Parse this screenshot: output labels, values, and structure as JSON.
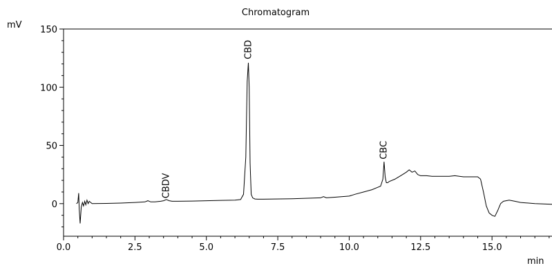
{
  "chart_data": {
    "type": "line",
    "title": "Chromatogram",
    "xlabel": "min",
    "ylabel": "mV",
    "xlim": [
      0.0,
      17.1
    ],
    "ylim": [
      -28,
      150
    ],
    "x_ticks": [
      0.0,
      2.5,
      5.0,
      7.5,
      10.0,
      12.5,
      15.0
    ],
    "x_tick_labels": [
      "0.0",
      "2.5",
      "5.0",
      "7.5",
      "10.0",
      "12.5",
      "15.0"
    ],
    "y_ticks": [
      0,
      50,
      100,
      150
    ],
    "y_tick_labels": [
      "0",
      "50",
      "100",
      "150"
    ],
    "grid": false,
    "line_color": "#000000",
    "series": [
      {
        "x": [
          0.45,
          0.5,
          0.53,
          0.55,
          0.58,
          0.62,
          0.66,
          0.7,
          0.74,
          0.78,
          0.82,
          0.86,
          0.9,
          0.95,
          1.0,
          1.5,
          2.0,
          2.5,
          2.85,
          2.95,
          3.05,
          3.2,
          3.4,
          3.5,
          3.6,
          3.7,
          3.8,
          4.0,
          4.5,
          5.0,
          5.5,
          6.0,
          6.2,
          6.3,
          6.38,
          6.43,
          6.47,
          6.5,
          6.53,
          6.57,
          6.62,
          6.7,
          6.8,
          7.0,
          8.0,
          9.0,
          9.1,
          9.2,
          9.5,
          10.0,
          10.2,
          10.5,
          10.8,
          11.0,
          11.1,
          11.18,
          11.22,
          11.26,
          11.3,
          11.35,
          11.4,
          11.6,
          11.8,
          12.0,
          12.1,
          12.2,
          12.3,
          12.4,
          12.5,
          12.7,
          12.9,
          13.0,
          13.5,
          13.7,
          14.0,
          14.5,
          14.6,
          14.7,
          14.8,
          14.9,
          15.0,
          15.1,
          15.2,
          15.3,
          15.4,
          15.6,
          15.8,
          16.0,
          16.5,
          17.1
        ],
        "y": [
          0,
          1,
          9,
          -5,
          -17,
          -3,
          1,
          -2,
          2,
          -1,
          3,
          0,
          2,
          1,
          0,
          0.2,
          0.5,
          1,
          1.5,
          2.5,
          1.5,
          1.5,
          2,
          2.5,
          3.5,
          2.5,
          2,
          2,
          2.2,
          2.5,
          2.8,
          3,
          3.5,
          8,
          40,
          105,
          121,
          100,
          35,
          8,
          5,
          4,
          3.8,
          3.8,
          4.2,
          5,
          6,
          5,
          5.5,
          6.5,
          8,
          10,
          12,
          14,
          15,
          21,
          36,
          23,
          18,
          18,
          19,
          21,
          24,
          27,
          29,
          27,
          28,
          25,
          24,
          24,
          23.5,
          23.5,
          23.5,
          24,
          23,
          23,
          21,
          10,
          -2,
          -8,
          -10,
          -11,
          -6,
          0,
          2,
          3,
          2,
          1,
          0,
          -0.5
        ]
      }
    ],
    "annotations": [
      {
        "label": "CBDV",
        "x": 3.6,
        "y": 4.5
      },
      {
        "label": "CBD",
        "x": 6.48,
        "y": 124
      },
      {
        "label": "CBC",
        "x": 11.22,
        "y": 38
      }
    ]
  }
}
